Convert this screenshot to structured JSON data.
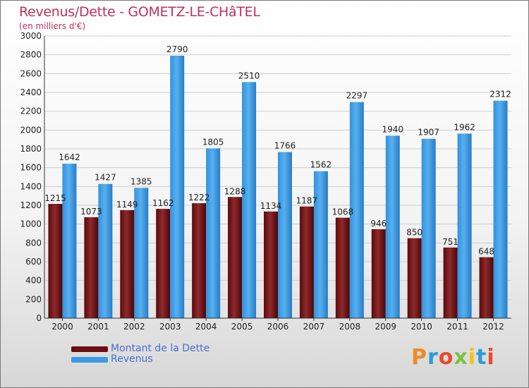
{
  "title": "Revenus/Dette - GOMETZ-LE-CHâTEL",
  "subtitle": "(en milliers d'€)",
  "logo": {
    "text": "Proxiti",
    "colors": [
      "#f08a24",
      "#2e9bd6",
      "#e84a2a",
      "#7cc242",
      "#f2c318",
      "#2e9bd6",
      "#e84a2a"
    ]
  },
  "colors": {
    "debt": "#7a1a1c",
    "revenue": "#3d9be5",
    "title": "#c0305a",
    "legend_text": "#4a6ed0"
  },
  "legend": [
    {
      "label": "Montant de la Dette",
      "color": "#7a1a1c"
    },
    {
      "label": "Revenus",
      "color": "#3d9be5"
    }
  ],
  "chart_data": {
    "type": "bar",
    "categories": [
      "2000",
      "2001",
      "2002",
      "2003",
      "2004",
      "2005",
      "2006",
      "2007",
      "2008",
      "2009",
      "2010",
      "2011",
      "2012"
    ],
    "series": [
      {
        "name": "Montant de la Dette",
        "values": [
          1215,
          1073,
          1149,
          1162,
          1222,
          1288,
          1134,
          1187,
          1068,
          946,
          850,
          751,
          648
        ],
        "labels": [
          "1215",
          "1073",
          "1149",
          "1162",
          "1222",
          "1288",
          "1134",
          "1187",
          "1068",
          "946",
          "850",
          "751",
          "648"
        ]
      },
      {
        "name": "Revenus",
        "values": [
          1642,
          1427,
          1385,
          2790,
          1805,
          2510,
          1766,
          1562,
          2297,
          1940,
          1907,
          1962,
          2312
        ],
        "labels": [
          "1642",
          "1427",
          "1385",
          "2790",
          "1805",
          "2510",
          "1766",
          "1562",
          "2297",
          "1940",
          "1907",
          "1962",
          "2312"
        ]
      }
    ],
    "ylim": [
      0,
      3000
    ],
    "yticks": [
      "0",
      "200",
      "400",
      "600",
      "800",
      "1000",
      "1200",
      "1400",
      "1600",
      "1800",
      "2000",
      "2200",
      "2400",
      "2600",
      "2800",
      "3000"
    ],
    "grid": true,
    "legend_position": "bottom-left"
  }
}
